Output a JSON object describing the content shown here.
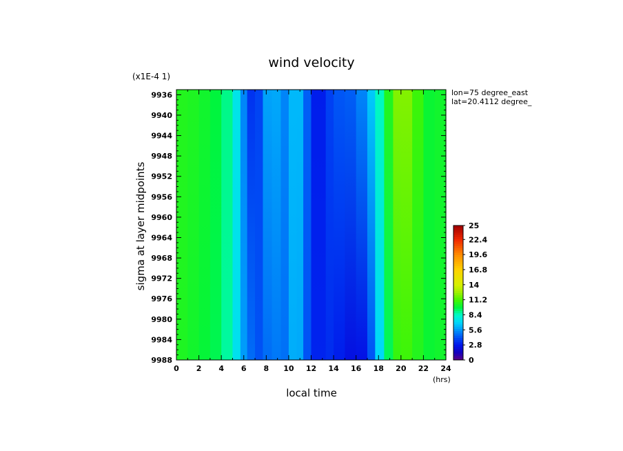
{
  "chart_data": {
    "type": "heatmap",
    "title": "wind  velocity",
    "scale_note": "(x1E-4 1)",
    "xlabel": "local time",
    "xunits": "(hrs)",
    "ylabel": "sigma at layer midpoints",
    "annotations": [
      "lon=75 degree_east",
      "lat=20.4112 degree_"
    ],
    "x_ticks": [
      "0",
      "2",
      "4",
      "6",
      "8",
      "10",
      "12",
      "14",
      "16",
      "18",
      "20",
      "22",
      "24"
    ],
    "y_ticks": [
      "9936",
      "9940",
      "9944",
      "9948",
      "9952",
      "9956",
      "9960",
      "9964",
      "9968",
      "9972",
      "9976",
      "9980",
      "9984",
      "9988"
    ],
    "xlim": [
      0,
      24
    ],
    "ylim": [
      9935,
      9988
    ],
    "colorbar": {
      "ticks": [
        "25",
        "22.4",
        "19.6",
        "16.8",
        "14",
        "11.2",
        "8.4",
        "5.6",
        "2.8",
        "0"
      ],
      "range": [
        0,
        25
      ]
    },
    "columns": [
      {
        "x": 0,
        "top": 10.5,
        "bottom": 10.5
      },
      {
        "x": 1,
        "top": 10.5,
        "bottom": 10.3
      },
      {
        "x": 2,
        "top": 10.3,
        "bottom": 10.0
      },
      {
        "x": 3,
        "top": 10.0,
        "bottom": 9.8
      },
      {
        "x": 4,
        "top": 9.6,
        "bottom": 9.4
      },
      {
        "x": 5,
        "top": 8.5,
        "bottom": 8.2
      },
      {
        "x": 5.7,
        "top": 6.5,
        "bottom": 6.5
      },
      {
        "x": 6.3,
        "top": 4.0,
        "bottom": 5.0
      },
      {
        "x": 7,
        "top": 3.0,
        "bottom": 4.5
      },
      {
        "x": 7.7,
        "top": 4.8,
        "bottom": 4.0
      },
      {
        "x": 8.5,
        "top": 7.0,
        "bottom": 5.5
      },
      {
        "x": 9.3,
        "top": 5.0,
        "bottom": 4.5
      },
      {
        "x": 10,
        "top": 5.5,
        "bottom": 5.2
      },
      {
        "x": 10.7,
        "top": 7.2,
        "bottom": 7.0
      },
      {
        "x": 11.3,
        "top": 5.5,
        "bottom": 5.0
      },
      {
        "x": 12,
        "top": 3.5,
        "bottom": 3.5
      },
      {
        "x": 12.7,
        "top": 2.5,
        "bottom": 2.8
      },
      {
        "x": 13.3,
        "top": 3.5,
        "bottom": 3.5
      },
      {
        "x": 14,
        "top": 4.2,
        "bottom": 3.2
      },
      {
        "x": 15,
        "top": 4.5,
        "bottom": 2.8
      },
      {
        "x": 16,
        "top": 4.5,
        "bottom": 2.2
      },
      {
        "x": 17,
        "top": 6.0,
        "bottom": 3.0
      },
      {
        "x": 17.7,
        "top": 7.5,
        "bottom": 5.5
      },
      {
        "x": 18.5,
        "top": 9.5,
        "bottom": 8.5
      },
      {
        "x": 19.3,
        "top": 11.5,
        "bottom": 10.5
      },
      {
        "x": 20,
        "top": 12.8,
        "bottom": 11.2
      },
      {
        "x": 21,
        "top": 11.5,
        "bottom": 10.8
      },
      {
        "x": 22,
        "top": 10.5,
        "bottom": 10.2
      },
      {
        "x": 23,
        "top": 9.5,
        "bottom": 9.8
      },
      {
        "x": 24,
        "top": 10.8,
        "bottom": 10.5
      }
    ]
  }
}
